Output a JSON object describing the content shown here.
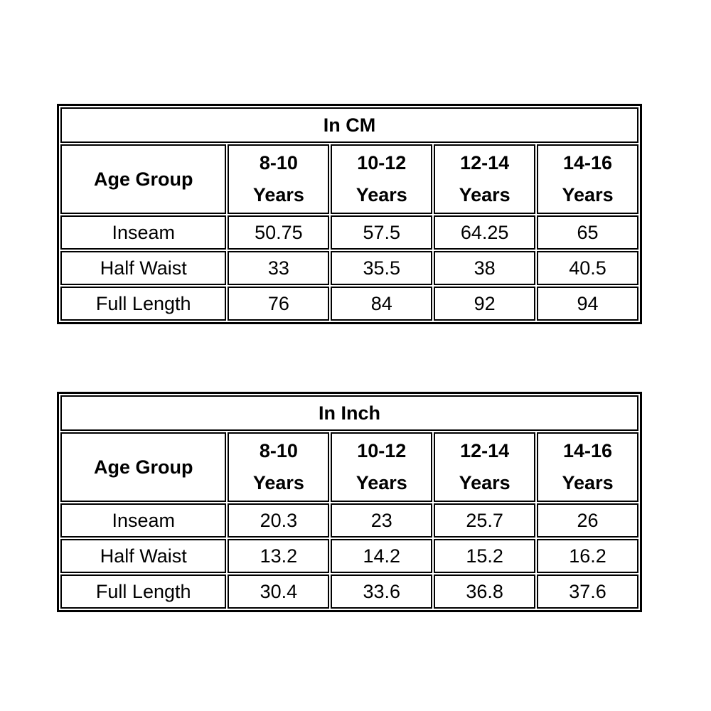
{
  "page": {
    "background_color": "#ffffff",
    "text_color": "#000000",
    "border_color": "#000000"
  },
  "tables": [
    {
      "title": "In CM",
      "corner_header": "Age Group",
      "column_headers": [
        "8-10\nYears",
        "10-12\nYears",
        "12-14\nYears",
        "14-16\nYears"
      ],
      "rows": [
        {
          "label": "Inseam",
          "values": [
            "50.75",
            "57.5",
            "64.25",
            "65"
          ]
        },
        {
          "label": "Half Waist",
          "values": [
            "33",
            "35.5",
            "38",
            "40.5"
          ]
        },
        {
          "label": "Full Length",
          "values": [
            "76",
            "84",
            "92",
            "94"
          ]
        }
      ]
    },
    {
      "title": "In Inch",
      "corner_header": "Age Group",
      "column_headers": [
        "8-10\nYears",
        "10-12\nYears",
        "12-14\nYears",
        "14-16\nYears"
      ],
      "rows": [
        {
          "label": "Inseam",
          "values": [
            "20.3",
            "23",
            "25.7",
            "26"
          ]
        },
        {
          "label": "Half Waist",
          "values": [
            "13.2",
            "14.2",
            "15.2",
            "16.2"
          ]
        },
        {
          "label": "Full Length",
          "values": [
            "30.4",
            "33.6",
            "36.8",
            "37.6"
          ]
        }
      ]
    }
  ],
  "chart_data": [
    {
      "type": "table",
      "title": "In CM",
      "columns": [
        "Age Group",
        "8-10 Years",
        "10-12 Years",
        "12-14 Years",
        "14-16 Years"
      ],
      "rows": [
        [
          "Inseam",
          50.75,
          57.5,
          64.25,
          65
        ],
        [
          "Half Waist",
          33,
          35.5,
          38,
          40.5
        ],
        [
          "Full Length",
          76,
          84,
          92,
          94
        ]
      ]
    },
    {
      "type": "table",
      "title": "In Inch",
      "columns": [
        "Age Group",
        "8-10 Years",
        "10-12 Years",
        "12-14 Years",
        "14-16 Years"
      ],
      "rows": [
        [
          "Inseam",
          20.3,
          23,
          25.7,
          26
        ],
        [
          "Half Waist",
          13.2,
          14.2,
          15.2,
          16.2
        ],
        [
          "Full Length",
          30.4,
          33.6,
          36.8,
          37.6
        ]
      ]
    }
  ]
}
